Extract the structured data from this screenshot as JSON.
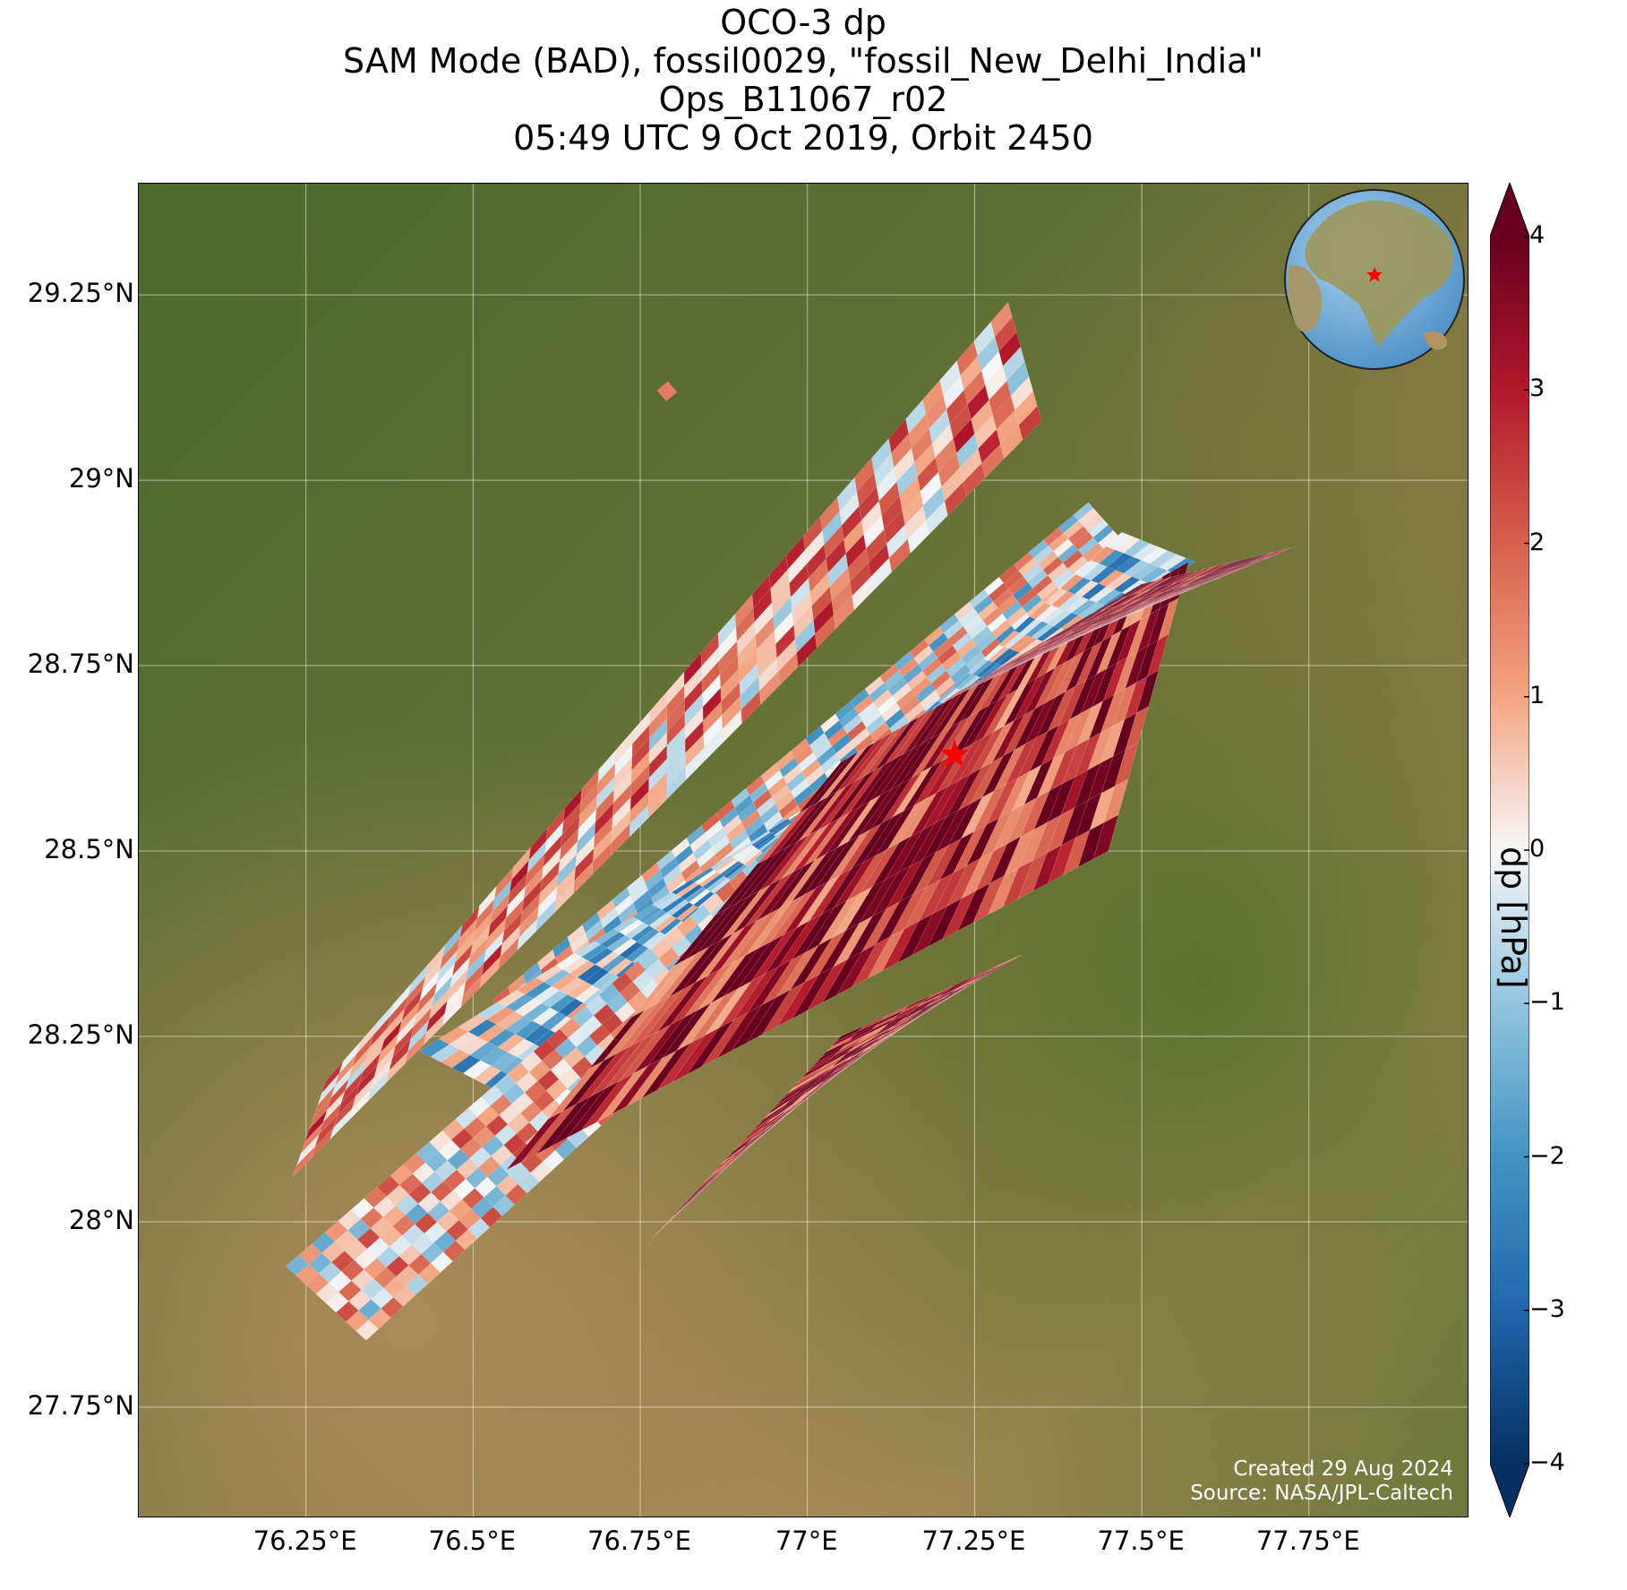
{
  "title": {
    "line1": "OCO-3 dp",
    "line2": "SAM Mode (BAD), fossil0029, \"fossil_New_Delhi_India\"",
    "line3": "Ops_B11067_r02",
    "line4": "05:49 UTC 9 Oct 2019, Orbit 2450"
  },
  "map": {
    "extent": {
      "lon": [
        76.0,
        77.99
      ],
      "lat": [
        27.6,
        29.4
      ]
    },
    "lat_ticks": [
      {
        "value": 29.25,
        "label": "29.25°N"
      },
      {
        "value": 29.0,
        "label": "29°N"
      },
      {
        "value": 28.75,
        "label": "28.75°N"
      },
      {
        "value": 28.5,
        "label": "28.5°N"
      },
      {
        "value": 28.25,
        "label": "28.25°N"
      },
      {
        "value": 28.0,
        "label": "28°N"
      },
      {
        "value": 27.75,
        "label": "27.75°N"
      }
    ],
    "lon_ticks": [
      {
        "value": 76.25,
        "label": "76.25°E"
      },
      {
        "value": 76.5,
        "label": "76.5°E"
      },
      {
        "value": 76.75,
        "label": "76.75°E"
      },
      {
        "value": 77.0,
        "label": "77°E"
      },
      {
        "value": 77.25,
        "label": "77.25°E"
      },
      {
        "value": 77.5,
        "label": "77.5°E"
      },
      {
        "value": 77.75,
        "label": "77.75°E"
      }
    ],
    "target_marker": {
      "lon": 77.22,
      "lat": 28.63,
      "color": "#ff0000",
      "symbol": "star"
    },
    "inset_globe": {
      "marker": "star",
      "marker_color": "#ff0000"
    },
    "background": "satellite imagery",
    "credits": {
      "created": "Created 29 Aug 2024",
      "source": "Source: NASA/JPL-Caltech"
    }
  },
  "colorbar": {
    "label": "dp [hPa]",
    "range": [
      -4,
      4
    ],
    "extend": "both",
    "colormap": "RdBu_r",
    "ticks": [
      {
        "value": 4,
        "label": "4"
      },
      {
        "value": 3,
        "label": "3"
      },
      {
        "value": 2,
        "label": "2"
      },
      {
        "value": 1,
        "label": "1"
      },
      {
        "value": 0,
        "label": "0"
      },
      {
        "value": -1,
        "label": "−1"
      },
      {
        "value": -2,
        "label": "−2"
      },
      {
        "value": -3,
        "label": "−3"
      },
      {
        "value": -4,
        "label": "−4"
      }
    ]
  },
  "chart_data": {
    "type": "heatmap",
    "title": "OCO-3 dp",
    "units": "hPa",
    "swaths": [
      {
        "corners": [
          [
            76.23,
            28.06
          ],
          [
            76.28,
            28.19
          ],
          [
            77.3,
            29.24
          ],
          [
            77.35,
            29.08
          ]
        ],
        "mean_dp": 1.0
      },
      {
        "corners": [
          [
            76.53,
            28.3
          ],
          [
            76.56,
            28.21
          ],
          [
            77.48,
            28.91
          ],
          [
            77.42,
            28.97
          ]
        ],
        "mean_dp": 0.0
      },
      {
        "corners": [
          [
            76.42,
            28.23
          ],
          [
            76.55,
            28.17
          ],
          [
            77.47,
            28.93
          ],
          [
            77.58,
            28.89
          ]
        ],
        "mean_dp": -0.8
      },
      {
        "corners": [
          [
            76.22,
            27.94
          ],
          [
            76.34,
            27.84
          ],
          [
            77.08,
            28.45
          ],
          [
            77.0,
            28.55
          ]
        ],
        "mean_dp": 0.5
      },
      {
        "corners": [
          [
            76.55,
            28.07
          ],
          [
            77.05,
            28.62
          ],
          [
            77.57,
            28.89
          ],
          [
            77.45,
            28.5
          ]
        ],
        "mean_dp": 3.0
      },
      {
        "corners": [
          [
            77.2,
            28.7
          ],
          [
            77.5,
            28.86
          ],
          [
            77.73,
            28.91
          ],
          [
            77.43,
            28.8
          ]
        ],
        "mean_dp": 3.8
      },
      {
        "corners": [
          [
            76.76,
            27.97
          ],
          [
            77.02,
            28.2
          ],
          [
            77.32,
            28.36
          ],
          [
            77.05,
            28.25
          ]
        ],
        "mean_dp": 3.2
      }
    ],
    "notable_patch": {
      "lon": 76.79,
      "lat": 29.12,
      "dp": 1.6
    }
  }
}
